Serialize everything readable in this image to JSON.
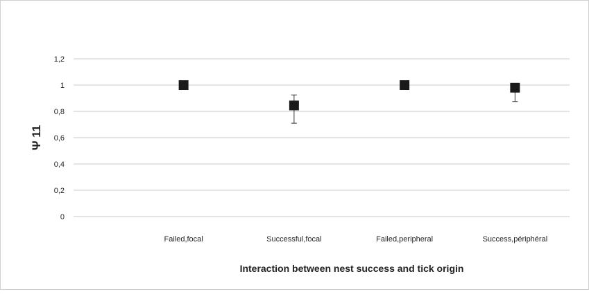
{
  "chart_data": {
    "type": "scatter",
    "title": "",
    "xlabel": "Interaction between nest success and tick origin",
    "ylabel": "Ψ 11",
    "categories": [
      "Failed,focal",
      "Successful,focal",
      "Failed,peripheral",
      "Success,périphéral"
    ],
    "values": [
      1.0,
      0.845,
      1.0,
      0.98
    ],
    "error_lower": [
      1.0,
      0.71,
      1.0,
      0.875
    ],
    "error_upper": [
      1.0,
      0.925,
      1.0,
      0.98
    ],
    "ylim": [
      0,
      1.2
    ],
    "yticks": [
      "0",
      "0,2",
      "0,4",
      "0,6",
      "0,8",
      "1",
      "1,2"
    ],
    "grid": true,
    "legend": "none",
    "marker": "square",
    "colors": {
      "marker": "#1a1a1a",
      "grid": "#c8c8c8",
      "text": "#222222"
    }
  }
}
